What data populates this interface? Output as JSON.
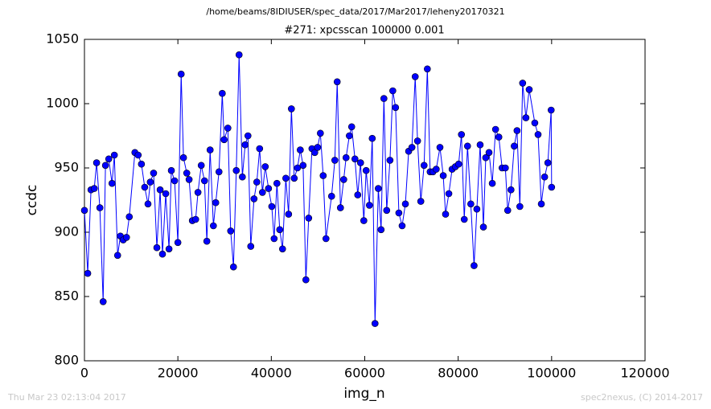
{
  "chart_data": {
    "type": "line",
    "suptitle": "/home/beams/8IDIUSER/spec_data/2017/Mar2017/leheny20170321",
    "title": "#271: xpcsscan 100000 0.001",
    "xlabel": "img_n",
    "ylabel": "ccdc",
    "footer_left": "Thu Mar 23 02:13:04 2017",
    "footer_right": "spec2nexus, (C) 2014-2017",
    "color": "#0000ff",
    "xlim": [
      0,
      120000
    ],
    "xticks": [
      0,
      20000,
      40000,
      60000,
      80000,
      100000,
      120000
    ],
    "ylim": [
      800,
      1050
    ],
    "yticks": [
      800,
      850,
      900,
      950,
      1000,
      1050
    ],
    "x": [
      0,
      700,
      1400,
      2100,
      2600,
      3300,
      4000,
      4500,
      5200,
      5900,
      6400,
      7100,
      7700,
      8300,
      9000,
      9600,
      10800,
      11500,
      12200,
      12900,
      13600,
      14100,
      14800,
      15500,
      16200,
      16700,
      17400,
      18100,
      18600,
      19300,
      20000,
      20700,
      21200,
      21900,
      22400,
      23100,
      23800,
      24300,
      25000,
      25700,
      26200,
      26900,
      27600,
      28100,
      28800,
      29500,
      29900,
      30700,
      31300,
      31900,
      32500,
      33100,
      33800,
      34400,
      35000,
      35600,
      36300,
      36900,
      37500,
      38100,
      38700,
      39400,
      40100,
      40600,
      41200,
      41800,
      42400,
      43100,
      43700,
      44300,
      44900,
      45600,
      46200,
      46800,
      47400,
      48000,
      48700,
      49300,
      49900,
      50500,
      51100,
      51700,
      52900,
      53600,
      54100,
      54800,
      55500,
      56000,
      56700,
      57200,
      57900,
      58500,
      59100,
      59800,
      60300,
      61000,
      61600,
      62200,
      62900,
      63500,
      64100,
      64700,
      65400,
      66000,
      66600,
      67300,
      68000,
      68700,
      69400,
      70100,
      70800,
      71300,
      72000,
      72700,
      73400,
      74000,
      74600,
      75300,
      76100,
      76800,
      77300,
      78000,
      78700,
      79400,
      80100,
      80700,
      81300,
      82000,
      82700,
      83400,
      84000,
      84700,
      85400,
      85900,
      86600,
      87300,
      88000,
      88700,
      89400,
      90100,
      90600,
      91300,
      92000,
      92600,
      93200,
      93800,
      94500,
      95200,
      96400,
      97100,
      97800,
      98500,
      99200,
      99900,
      100000
    ],
    "values": [
      917,
      868,
      933,
      934,
      954,
      919,
      846,
      952,
      957,
      938,
      960,
      882,
      897,
      894,
      896,
      912,
      962,
      960,
      953,
      935,
      922,
      939,
      946,
      888,
      933,
      883,
      930,
      887,
      948,
      940,
      892,
      1023,
      958,
      946,
      941,
      909,
      910,
      931,
      952,
      940,
      893,
      964,
      905,
      923,
      947,
      1008,
      972,
      981,
      901,
      873,
      948,
      1038,
      943,
      968,
      975,
      889,
      926,
      939,
      965,
      931,
      951,
      934,
      920,
      895,
      938,
      902,
      887,
      942,
      914,
      996,
      942,
      950,
      964,
      952,
      863,
      911,
      965,
      962,
      966,
      977,
      944,
      895,
      928,
      956,
      1017,
      919,
      941,
      958,
      975,
      982,
      957,
      929,
      954,
      909,
      948,
      921,
      973,
      829,
      934,
      902,
      1004,
      917,
      956,
      1010,
      997,
      915,
      905,
      922,
      963,
      966,
      1021,
      971,
      924,
      952,
      1027,
      947,
      947,
      949,
      966,
      944,
      914,
      930,
      949,
      951,
      953,
      976,
      910,
      967,
      922,
      874,
      918,
      968,
      904,
      958,
      962,
      938,
      980,
      974,
      950,
      950,
      917,
      933,
      967,
      979,
      920,
      1016,
      989,
      1011,
      985,
      976,
      922,
      943,
      954,
      995,
      935
    ]
  }
}
